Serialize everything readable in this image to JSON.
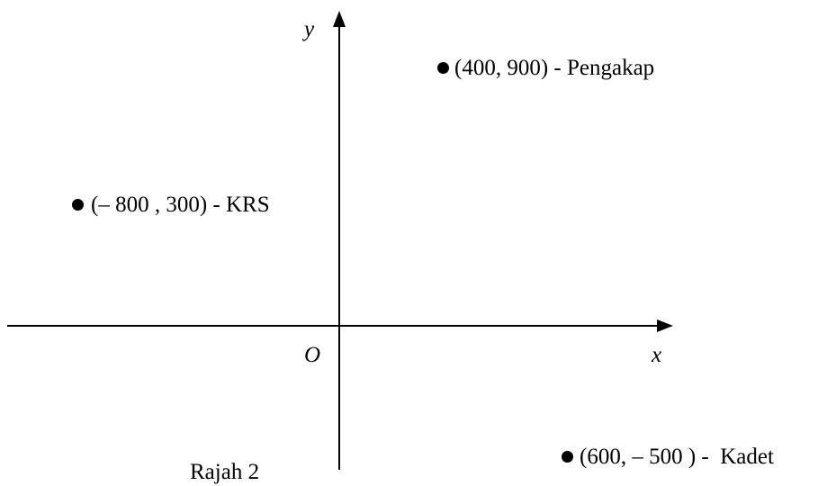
{
  "axes": {
    "x_label": "x",
    "y_label": "y",
    "origin_label": "O"
  },
  "points": [
    {
      "coord": "(400, 900)",
      "x": 400,
      "y": 900,
      "sep": " - ",
      "name": "Pengakap"
    },
    {
      "coord": "(– 800 , 300)",
      "x": -800,
      "y": 300,
      "sep": " - ",
      "name": "KRS"
    },
    {
      "coord": "(600, – 500 )",
      "x": 600,
      "y": -500,
      "sep": " -  ",
      "name": "Kadet"
    }
  ],
  "caption": "Rajah 2"
}
